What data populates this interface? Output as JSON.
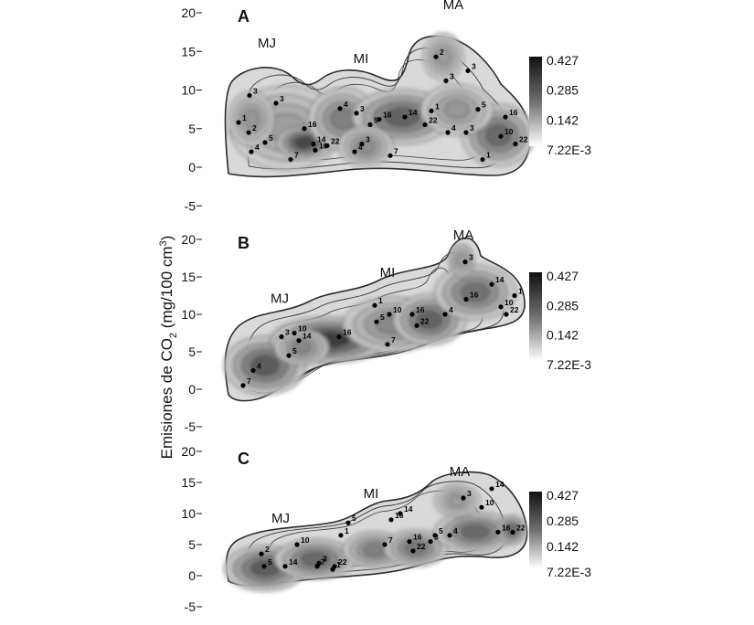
{
  "figure": {
    "ylabel_main": "Emisiones de CO",
    "ylabel_sub": "2",
    "ylabel_unit_open": " (mg/100 cm",
    "ylabel_unit_sup": "3",
    "ylabel_unit_close": ")",
    "colorbar_ticks": [
      "0.427",
      "0.285",
      "0.142",
      "7.22E-3"
    ],
    "colors": {
      "dark": "#111111",
      "mid": "#6f6f6f",
      "light": "#ffffff",
      "contour": "#2a2a2a"
    }
  },
  "chart_data": [
    {
      "type": "heatmap",
      "panel": "A",
      "ylim": [
        -5,
        20
      ],
      "yticks": [
        "20",
        "15",
        "10",
        "5",
        "0",
        "-5"
      ],
      "colorbar": {
        "min": 0.00722,
        "max": 0.427,
        "ticks": [
          "0.427",
          "0.285",
          "0.142",
          "7.22E-3"
        ]
      },
      "regions": [
        {
          "label": "MJ",
          "y": 15.5
        },
        {
          "label": "MI",
          "y": 13.5
        },
        {
          "label": "MA",
          "y": 20.5
        }
      ],
      "points": [
        {
          "label": "3",
          "y": 9.3
        },
        {
          "label": "3",
          "y": 8.3
        },
        {
          "label": "1",
          "y": 5.8
        },
        {
          "label": "2",
          "y": 4.5
        },
        {
          "label": "16",
          "y": 5
        },
        {
          "label": "5",
          "y": 3.2
        },
        {
          "label": "4",
          "y": 2
        },
        {
          "label": "14",
          "y": 3
        },
        {
          "label": "22",
          "y": 2.8
        },
        {
          "label": "10",
          "y": 2.2
        },
        {
          "label": "7",
          "y": 1
        },
        {
          "label": "4",
          "y": 7.6
        },
        {
          "label": "3",
          "y": 7
        },
        {
          "label": "3",
          "y": 3
        },
        {
          "label": "4",
          "y": 2
        },
        {
          "label": "7",
          "y": 1.5
        },
        {
          "label": "5",
          "y": 5.5
        },
        {
          "label": "16",
          "y": 6.2
        },
        {
          "label": "14",
          "y": 6.5
        },
        {
          "label": "1",
          "y": 7.3
        },
        {
          "label": "22",
          "y": 5.5
        },
        {
          "label": "2",
          "y": 14.3
        },
        {
          "label": "3",
          "y": 12.5
        },
        {
          "label": "3",
          "y": 11.2
        },
        {
          "label": "5",
          "y": 7.5
        },
        {
          "label": "4",
          "y": 4.5
        },
        {
          "label": "3",
          "y": 4.5
        },
        {
          "label": "16",
          "y": 6.5
        },
        {
          "label": "10",
          "y": 4
        },
        {
          "label": "22",
          "y": 3
        },
        {
          "label": "1",
          "y": 1
        }
      ]
    },
    {
      "type": "heatmap",
      "panel": "B",
      "ylim": [
        -5,
        20
      ],
      "yticks": [
        "20",
        "15",
        "10",
        "5",
        "0",
        "-5"
      ],
      "colorbar": {
        "min": 0.00722,
        "max": 0.427,
        "ticks": [
          "0.427",
          "0.285",
          "0.142",
          "7.22E-3"
        ]
      },
      "regions": [
        {
          "label": "MJ",
          "y": 11.5
        },
        {
          "label": "MI",
          "y": 15
        },
        {
          "label": "MA",
          "y": 20
        }
      ],
      "points": [
        {
          "label": "3",
          "y": 7
        },
        {
          "label": "10",
          "y": 7.5
        },
        {
          "label": "14",
          "y": 6.5
        },
        {
          "label": "16",
          "y": 7
        },
        {
          "label": "5",
          "y": 4.5
        },
        {
          "label": "4",
          "y": 2.5
        },
        {
          "label": "7",
          "y": 0.5
        },
        {
          "label": "1",
          "y": 11.2
        },
        {
          "label": "10",
          "y": 10
        },
        {
          "label": "5",
          "y": 9
        },
        {
          "label": "16",
          "y": 10
        },
        {
          "label": "22",
          "y": 8.5
        },
        {
          "label": "7",
          "y": 6
        },
        {
          "label": "3",
          "y": 17
        },
        {
          "label": "14",
          "y": 14
        },
        {
          "label": "16",
          "y": 12
        },
        {
          "label": "10",
          "y": 11
        },
        {
          "label": "4",
          "y": 10
        },
        {
          "label": "22",
          "y": 10
        },
        {
          "label": "1",
          "y": 12.5
        }
      ]
    },
    {
      "type": "heatmap",
      "panel": "C",
      "ylim": [
        -5,
        20
      ],
      "yticks": [
        "20",
        "15",
        "10",
        "5",
        "0",
        "-5"
      ],
      "colorbar": {
        "min": 0.00722,
        "max": 0.427,
        "ticks": [
          "0.427",
          "0.285",
          "0.142",
          "7.22E-3"
        ]
      },
      "regions": [
        {
          "label": "MJ",
          "y": 8.5
        },
        {
          "label": "MI",
          "y": 12.5
        },
        {
          "label": "MA",
          "y": 16
        }
      ],
      "points": [
        {
          "label": "10",
          "y": 5
        },
        {
          "label": "2",
          "y": 3.5
        },
        {
          "label": "5",
          "y": 1.5
        },
        {
          "label": "14",
          "y": 1.5
        },
        {
          "label": "3",
          "y": 2
        },
        {
          "label": "7",
          "y": 1.5
        },
        {
          "label": "1",
          "y": 1
        },
        {
          "label": "22",
          "y": 1.5
        },
        {
          "label": "5",
          "y": 8.5
        },
        {
          "label": "1",
          "y": 6.5
        },
        {
          "label": "14",
          "y": 10
        },
        {
          "label": "16",
          "y": 9
        },
        {
          "label": "7",
          "y": 5
        },
        {
          "label": "16",
          "y": 5.5
        },
        {
          "label": "22",
          "y": 4
        },
        {
          "label": "3",
          "y": 5.5
        },
        {
          "label": "14",
          "y": 14
        },
        {
          "label": "3",
          "y": 12.5
        },
        {
          "label": "10",
          "y": 11
        },
        {
          "label": "5",
          "y": 6.5
        },
        {
          "label": "4",
          "y": 6.5
        },
        {
          "label": "16",
          "y": 7
        },
        {
          "label": "22",
          "y": 7
        }
      ]
    }
  ]
}
